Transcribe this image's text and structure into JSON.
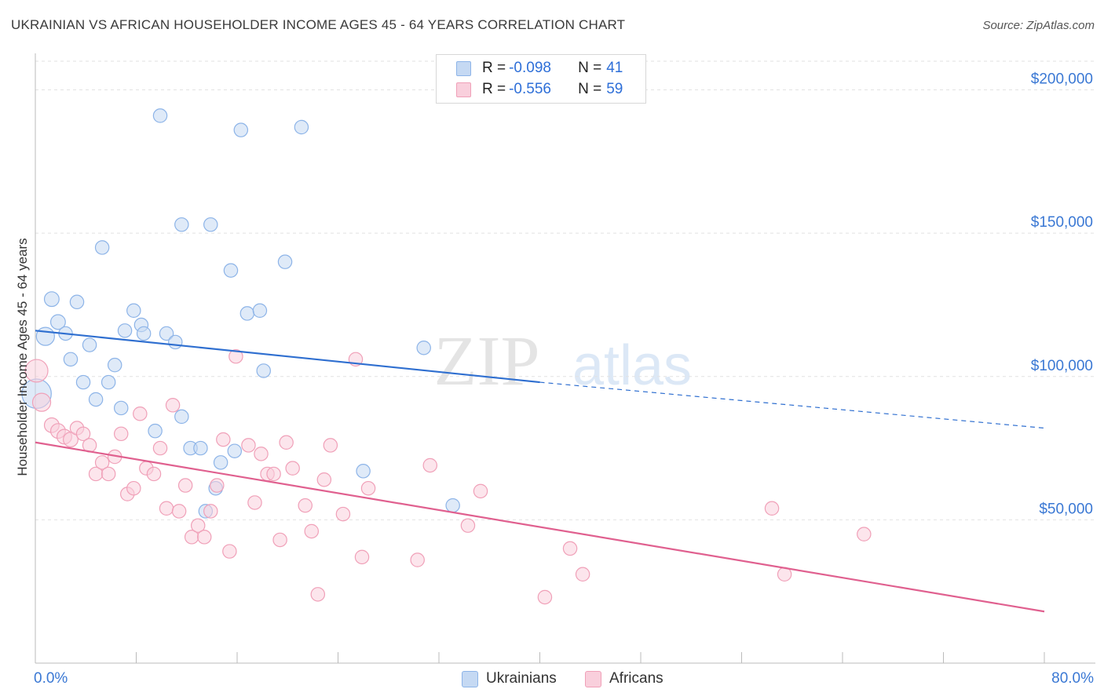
{
  "title": "UKRAINIAN VS AFRICAN HOUSEHOLDER INCOME AGES 45 - 64 YEARS CORRELATION CHART",
  "source": "Source: ZipAtlas.com",
  "watermark": {
    "zip": "ZIP",
    "atlas": "atlas"
  },
  "legend_top": {
    "rows": [
      {
        "r_label": "R = ",
        "r_value": "-0.098",
        "n_label": "N = ",
        "n_value": "41",
        "color": "#8db4e8",
        "fill": "#c5d9f3"
      },
      {
        "r_label": "R = ",
        "r_value": "-0.556",
        "n_label": "N = ",
        "n_value": "59",
        "color": "#f0a0b8",
        "fill": "#f9cfdc"
      }
    ]
  },
  "chart_data": {
    "type": "scatter",
    "title": "UKRAINIAN VS AFRICAN HOUSEHOLDER INCOME AGES 45 - 64 YEARS CORRELATION CHART",
    "xlabel": "",
    "ylabel": "Householder Income Ages 45 - 64 years",
    "xlim": [
      0,
      80
    ],
    "ylim": [
      0,
      210000
    ],
    "x_tick_labels": [
      "0.0%",
      "80.0%"
    ],
    "y_ticks": [
      {
        "value": 50000,
        "label": "$50,000"
      },
      {
        "value": 100000,
        "label": "$100,000"
      },
      {
        "value": 150000,
        "label": "$150,000"
      },
      {
        "value": 200000,
        "label": "$200,000"
      }
    ],
    "grid": "dashed horizontal",
    "legend_position": "bottom-center",
    "series": [
      {
        "name": "Ukrainians",
        "color": "#8db4e8",
        "fill": "#c5d9f3",
        "trend": {
          "x0": 0,
          "y0": 116000,
          "x1": 40,
          "y1": 98000,
          "dashed_to_x": 80,
          "dashed_to_y": 82000,
          "color": "#2f6fd0"
        },
        "points": [
          [
            0.1,
            94000,
            26
          ],
          [
            0.8,
            114000,
            16
          ],
          [
            1.3,
            127000,
            13
          ],
          [
            1.8,
            119000,
            13
          ],
          [
            2.4,
            115000,
            12
          ],
          [
            2.8,
            106000,
            12
          ],
          [
            3.3,
            126000,
            12
          ],
          [
            3.8,
            98000,
            12
          ],
          [
            4.3,
            111000,
            12
          ],
          [
            4.8,
            92000,
            12
          ],
          [
            5.3,
            145000,
            12
          ],
          [
            5.8,
            98000,
            12
          ],
          [
            6.3,
            104000,
            12
          ],
          [
            6.8,
            89000,
            12
          ],
          [
            7.1,
            116000,
            12
          ],
          [
            7.8,
            123000,
            12
          ],
          [
            8.4,
            118000,
            12
          ],
          [
            8.6,
            115000,
            12
          ],
          [
            9.5,
            81000,
            12
          ],
          [
            9.9,
            191000,
            12
          ],
          [
            10.4,
            115000,
            12
          ],
          [
            11.1,
            112000,
            12
          ],
          [
            11.6,
            86000,
            12
          ],
          [
            11.6,
            153000,
            12
          ],
          [
            12.3,
            75000,
            12
          ],
          [
            13.1,
            75000,
            12
          ],
          [
            13.5,
            53000,
            12
          ],
          [
            13.9,
            153000,
            12
          ],
          [
            14.3,
            61000,
            12
          ],
          [
            14.7,
            70000,
            12
          ],
          [
            15.5,
            137000,
            12
          ],
          [
            15.8,
            74000,
            12
          ],
          [
            16.3,
            186000,
            12
          ],
          [
            16.8,
            122000,
            12
          ],
          [
            17.8,
            123000,
            12
          ],
          [
            18.1,
            102000,
            12
          ],
          [
            19.8,
            140000,
            12
          ],
          [
            21.1,
            187000,
            12
          ],
          [
            26.0,
            67000,
            12
          ],
          [
            30.8,
            110000,
            12
          ],
          [
            33.1,
            55000,
            12
          ]
        ]
      },
      {
        "name": "Africans",
        "color": "#f0a0b8",
        "fill": "#f9cfdc",
        "trend": {
          "x0": 0,
          "y0": 77000,
          "x1": 80,
          "y1": 18000,
          "color": "#e0608f"
        },
        "points": [
          [
            0.1,
            102000,
            20
          ],
          [
            0.5,
            91000,
            16
          ],
          [
            1.3,
            83000,
            13
          ],
          [
            1.8,
            81000,
            13
          ],
          [
            2.3,
            79000,
            13
          ],
          [
            2.8,
            78000,
            13
          ],
          [
            3.3,
            82000,
            12
          ],
          [
            3.8,
            80000,
            12
          ],
          [
            4.3,
            76000,
            12
          ],
          [
            4.8,
            66000,
            12
          ],
          [
            5.3,
            70000,
            12
          ],
          [
            5.8,
            66000,
            12
          ],
          [
            6.3,
            72000,
            12
          ],
          [
            6.8,
            80000,
            12
          ],
          [
            7.3,
            59000,
            12
          ],
          [
            7.8,
            61000,
            12
          ],
          [
            8.3,
            87000,
            12
          ],
          [
            8.8,
            68000,
            12
          ],
          [
            9.4,
            66000,
            12
          ],
          [
            9.9,
            75000,
            12
          ],
          [
            10.4,
            54000,
            12
          ],
          [
            10.9,
            90000,
            12
          ],
          [
            11.4,
            53000,
            12
          ],
          [
            11.9,
            62000,
            12
          ],
          [
            12.4,
            44000,
            12
          ],
          [
            12.9,
            48000,
            12
          ],
          [
            13.4,
            44000,
            12
          ],
          [
            13.9,
            53000,
            12
          ],
          [
            14.4,
            62000,
            12
          ],
          [
            14.9,
            78000,
            12
          ],
          [
            15.4,
            39000,
            12
          ],
          [
            15.9,
            107000,
            12
          ],
          [
            16.9,
            76000,
            12
          ],
          [
            17.4,
            56000,
            12
          ],
          [
            17.9,
            73000,
            12
          ],
          [
            18.4,
            66000,
            12
          ],
          [
            18.9,
            66000,
            12
          ],
          [
            19.4,
            43000,
            12
          ],
          [
            19.9,
            77000,
            12
          ],
          [
            20.4,
            68000,
            12
          ],
          [
            21.4,
            55000,
            12
          ],
          [
            21.9,
            46000,
            12
          ],
          [
            22.4,
            24000,
            12
          ],
          [
            22.9,
            64000,
            12
          ],
          [
            23.4,
            76000,
            12
          ],
          [
            24.4,
            52000,
            12
          ],
          [
            25.4,
            106000,
            12
          ],
          [
            25.9,
            37000,
            12
          ],
          [
            26.4,
            61000,
            12
          ],
          [
            30.3,
            36000,
            12
          ],
          [
            31.3,
            69000,
            12
          ],
          [
            34.3,
            48000,
            12
          ],
          [
            35.3,
            60000,
            12
          ],
          [
            40.4,
            23000,
            12
          ],
          [
            42.4,
            40000,
            12
          ],
          [
            43.4,
            31000,
            12
          ],
          [
            58.4,
            54000,
            12
          ],
          [
            59.4,
            31000,
            12
          ],
          [
            65.7,
            45000,
            12
          ]
        ]
      }
    ]
  }
}
